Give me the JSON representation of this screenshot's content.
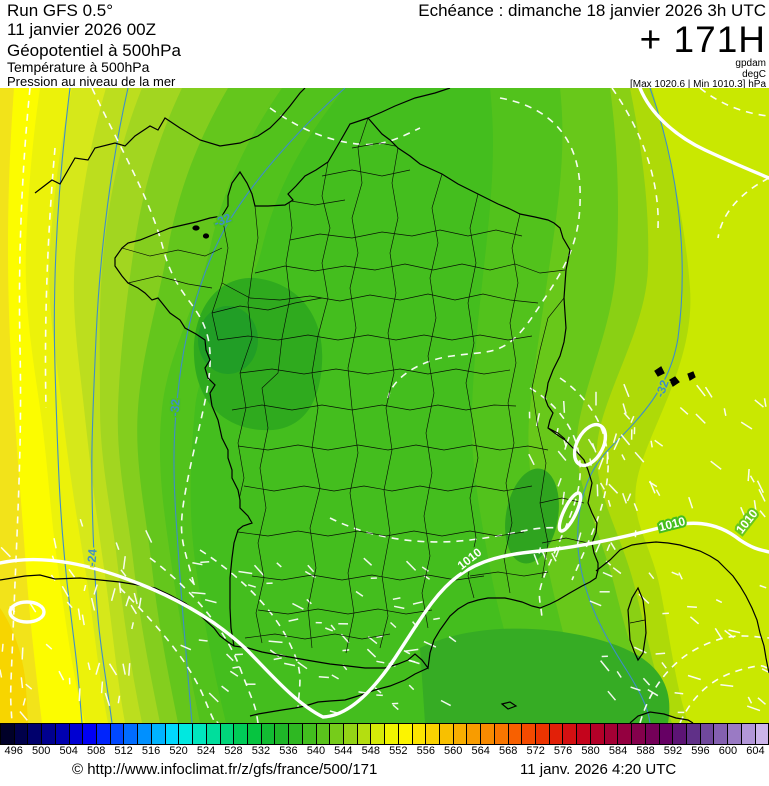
{
  "header": {
    "left": {
      "line1": "Run GFS 0.5°",
      "line2": "11 janvier 2026 00Z",
      "line3": "Géopotentiel à 500hPa",
      "line4": "Température à 500hPa",
      "line5": "Pression au niveau de la mer"
    },
    "right": {
      "echeance": "Echéance : dimanche 18 janvier 2026 3h UTC",
      "lead_time": "+ 171H",
      "unit1": "gpdam",
      "unit2": "degC",
      "minmax": "[Max 1020.6 | Min 1010.3] hPa"
    }
  },
  "map": {
    "pressure_labels": [
      "1010",
      "1010",
      "1010"
    ],
    "temperature_labels": [
      "-24",
      "-32",
      "-32",
      "-32"
    ]
  },
  "colorbar": {
    "values": [
      "496",
      "500",
      "504",
      "508",
      "512",
      "516",
      "520",
      "524",
      "528",
      "532",
      "536",
      "540",
      "544",
      "548",
      "552",
      "556",
      "560",
      "564",
      "568",
      "572",
      "576",
      "580",
      "584",
      "588",
      "592",
      "596",
      "600",
      "604"
    ],
    "cell_colors": [
      "#000028",
      "#00004A",
      "#00006C",
      "#00008E",
      "#0000B0",
      "#0000D2",
      "#0000F4",
      "#0024FC",
      "#0048FF",
      "#006CFF",
      "#0090FF",
      "#00B4FF",
      "#00D8FF",
      "#00E8E0",
      "#00E6BE",
      "#00DE9C",
      "#00D67A",
      "#00CC58",
      "#06C440",
      "#12BC32",
      "#1EB628",
      "#2EB822",
      "#42BE1E",
      "#5AC41C",
      "#76CC1A",
      "#94D416",
      "#B4DE10",
      "#D6EA08",
      "#F0F400",
      "#FCF400",
      "#FCE400",
      "#FAD200",
      "#F8C000",
      "#F8AE00",
      "#F89C00",
      "#F88A00",
      "#F87600",
      "#F86000",
      "#F44A00",
      "#EC3400",
      "#E22008",
      "#D41012",
      "#C4041C",
      "#B40028",
      "#A40034",
      "#940040",
      "#84004C",
      "#740058",
      "#660064",
      "#5C1474",
      "#603088",
      "#70489C",
      "#8460B0",
      "#9A7AC4",
      "#B296D8",
      "#CCB4EA"
    ]
  },
  "footer": {
    "copyright": "© http://www.infoclimat.fr/z/gfs/france/500/171",
    "datetime": "11 janv. 2026  4:20 UTC"
  }
}
